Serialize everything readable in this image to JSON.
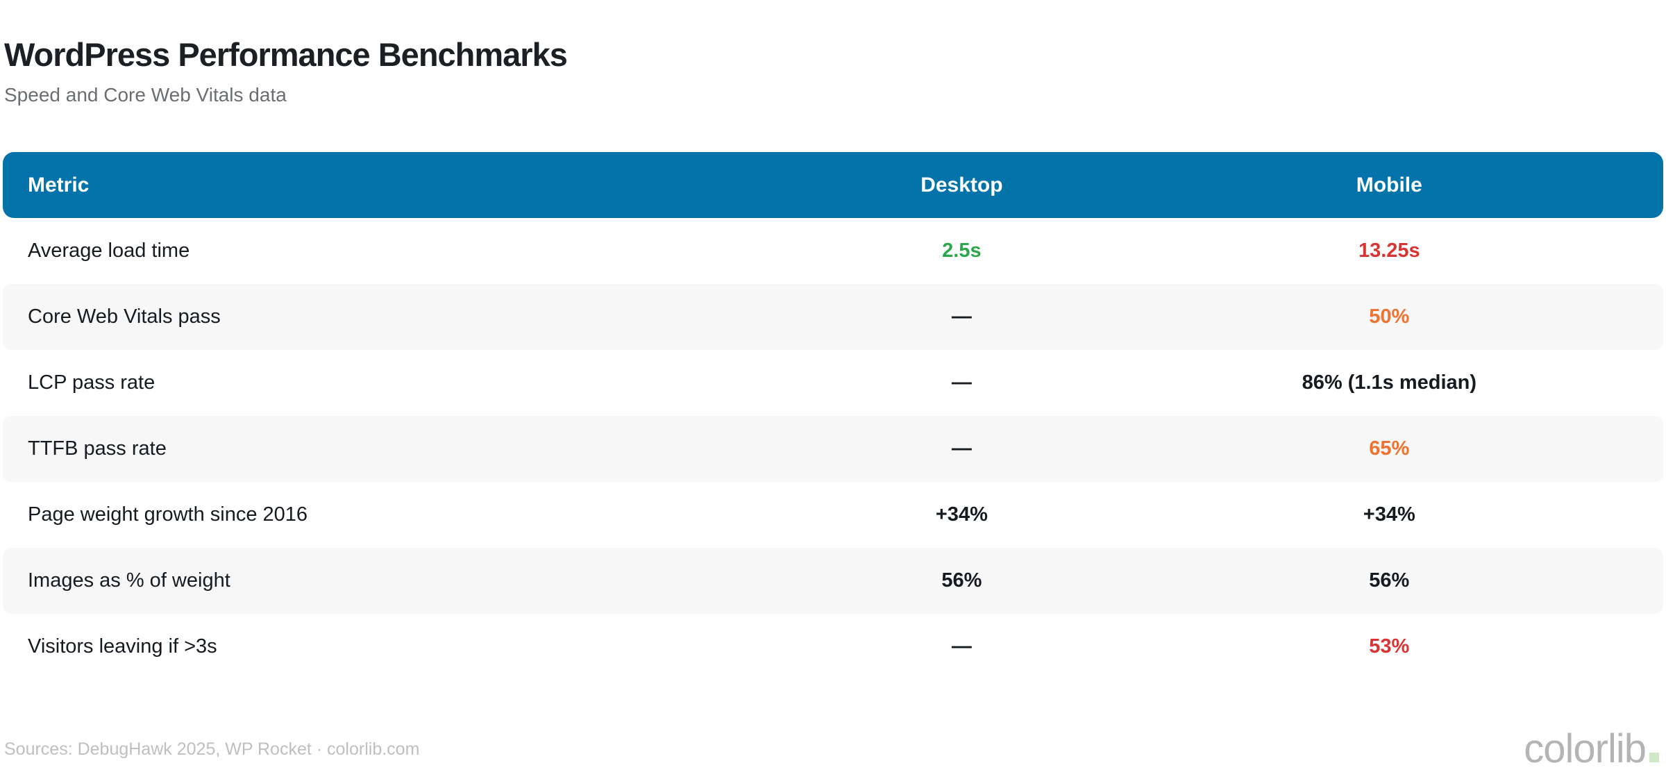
{
  "header": {
    "title": "WordPress Performance Benchmarks",
    "subtitle": "Speed and Core Web Vitals data"
  },
  "table": {
    "columns": [
      "Metric",
      "Desktop",
      "Mobile"
    ],
    "rows": [
      {
        "metric": "Average load time",
        "desktop": {
          "text": "2.5s",
          "tone": "good"
        },
        "mobile": {
          "text": "13.25s",
          "tone": "bad"
        }
      },
      {
        "metric": "Core Web Vitals pass",
        "desktop": {
          "text": "—",
          "tone": "neutral"
        },
        "mobile": {
          "text": "50%",
          "tone": "warn"
        }
      },
      {
        "metric": "LCP pass rate",
        "desktop": {
          "text": "—",
          "tone": "neutral"
        },
        "mobile": {
          "text": "86% (1.1s median)",
          "tone": "neutral"
        }
      },
      {
        "metric": "TTFB pass rate",
        "desktop": {
          "text": "—",
          "tone": "neutral"
        },
        "mobile": {
          "text": "65%",
          "tone": "warn"
        }
      },
      {
        "metric": "Page weight growth since 2016",
        "desktop": {
          "text": "+34%",
          "tone": "neutral"
        },
        "mobile": {
          "text": "+34%",
          "tone": "neutral"
        }
      },
      {
        "metric": "Images as % of weight",
        "desktop": {
          "text": "56%",
          "tone": "neutral"
        },
        "mobile": {
          "text": "56%",
          "tone": "neutral"
        }
      },
      {
        "metric": "Visitors leaving if >3s",
        "desktop": {
          "text": "—",
          "tone": "neutral"
        },
        "mobile": {
          "text": "53%",
          "tone": "bad"
        }
      }
    ]
  },
  "colors": {
    "header_bg": "#0473a9",
    "good": "#2ca74b",
    "bad": "#d93434",
    "warn": "#ef7231",
    "neutral": "#161b21",
    "stripe": "#f7f7f8",
    "accent_dot": "#cfe8c6"
  },
  "footer": {
    "sources": "Sources: DebugHawk 2025, WP Rocket · colorlib.com",
    "logo_text": "colorlib"
  },
  "chart_data": {
    "type": "table",
    "title": "WordPress Performance Benchmarks",
    "subtitle": "Speed and Core Web Vitals data",
    "columns": [
      "Metric",
      "Desktop",
      "Mobile"
    ],
    "rows": [
      [
        "Average load time",
        "2.5s",
        "13.25s"
      ],
      [
        "Core Web Vitals pass",
        "—",
        "50%"
      ],
      [
        "LCP pass rate",
        "—",
        "86% (1.1s median)"
      ],
      [
        "TTFB pass rate",
        "—",
        "65%"
      ],
      [
        "Page weight growth since 2016",
        "+34%",
        "+34%"
      ],
      [
        "Images as % of weight",
        "56%",
        "56%"
      ],
      [
        "Visitors leaving if >3s",
        "—",
        "53%"
      ]
    ],
    "legend_position": "none",
    "grid": "row-stripes"
  }
}
